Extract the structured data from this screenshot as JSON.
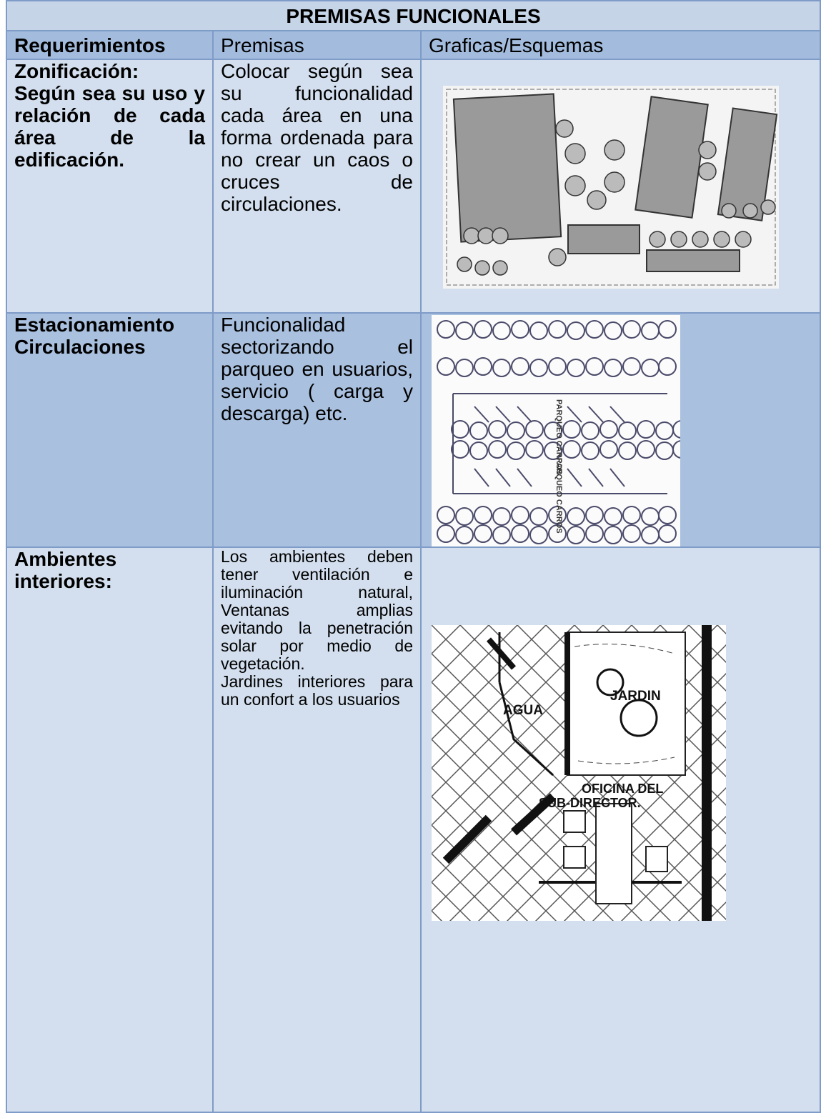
{
  "header": {
    "title": "PREMISAS FUNCIONALES"
  },
  "table": {
    "columns": [
      "Requerimientos",
      "Premisas",
      "Graficas/Esquemas"
    ],
    "rows": [
      [
        [
          "Zonificación:",
          "Según sea su uso y relación de cada área de la edificación."
        ],
        [
          "Colocar según sea su funcionalidad cada área en una forma ordenada para no crear un caos o cruces de circulaciones."
        ]
      ],
      [
        [
          "Estacionamiento",
          "Circulaciones"
        ],
        [
          "Funcionalidad sectorizando el parqueo en usuarios, servicio ( carga y descarga) etc."
        ]
      ],
      [
        [
          "Ambientes interiores:"
        ],
        [
          "Los ambientes deben tener ventilación e iluminación natural, Ventanas amplias evitando la penetración solar por medio de vegetación.",
          "Jardines interiores para un confort a los usuarios"
        ]
      ]
    ]
  },
  "images": {
    "parking_labels": [
      "PARQUEO CARROS",
      "PARQUEO CARROS"
    ],
    "plan_labels": [
      "AGUA",
      "JARDIN",
      "OFICINA DEL",
      "SUB-DIRECTOR."
    ]
  }
}
